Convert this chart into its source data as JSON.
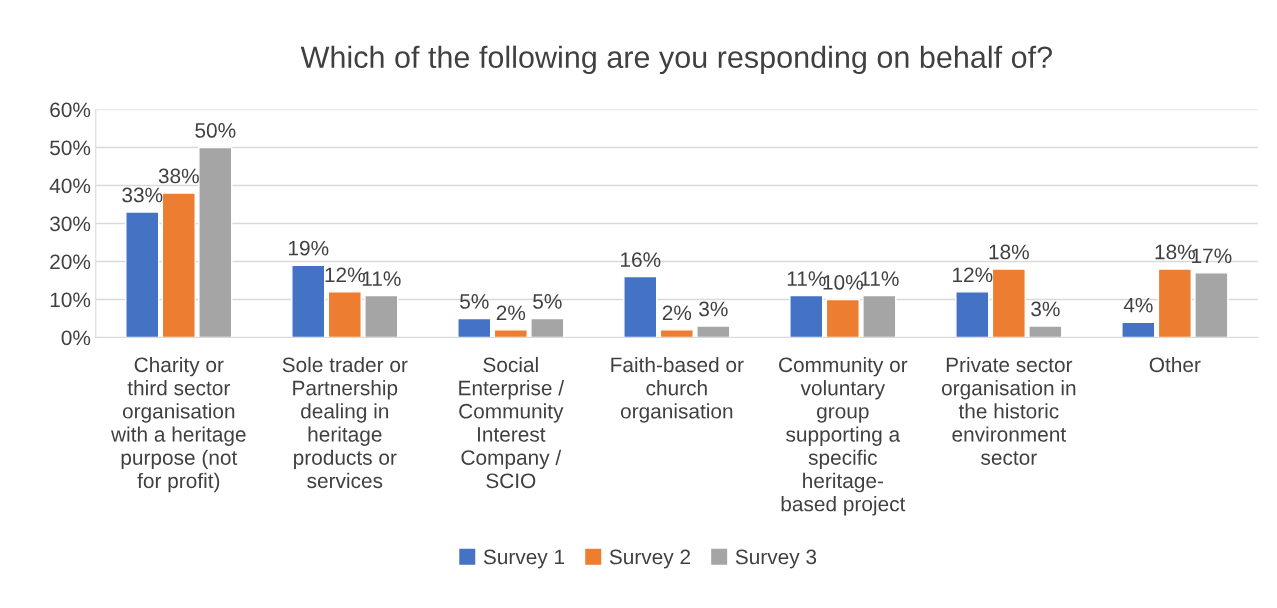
{
  "chart_data": {
    "type": "bar",
    "title": "Which of the following are you responding on behalf of?",
    "categories": [
      "Charity or\nthird sector\norganisation\nwith a heritage\npurpose (not\nfor profit)",
      "Sole trader or\nPartnership\ndealing in\nheritage\nproducts or\nservices",
      "Social\nEnterprise /\nCommunity\nInterest\nCompany /\nSCIO",
      "Faith-based or\nchurch\norganisation",
      "Community or\nvoluntary\ngroup\nsupporting a\nspecific\nheritage-\nbased project",
      "Private sector\norganisation in\nthe historic\nenvironment\nsector",
      "Other"
    ],
    "series": [
      {
        "name": "Survey 1",
        "color": "#4472c4",
        "values": [
          33,
          19,
          5,
          16,
          11,
          12,
          4
        ],
        "value_labels": [
          "33%",
          "19%",
          "5%",
          "16%",
          "11%",
          "12%",
          "4%"
        ]
      },
      {
        "name": "Survey 2",
        "color": "#ed7d31",
        "values": [
          38,
          12,
          2,
          2,
          10,
          18,
          18
        ],
        "value_labels": [
          "38%",
          "12%",
          "2%",
          "2%",
          "10%",
          "18%",
          "18%"
        ]
      },
      {
        "name": "Survey 3",
        "color": "#a5a5a5",
        "values": [
          50,
          11,
          5,
          3,
          11,
          3,
          17
        ],
        "value_labels": [
          "50%",
          "11%",
          "5%",
          "3%",
          "11%",
          "3%",
          "17%"
        ]
      }
    ],
    "ylim": [
      0,
      60
    ],
    "yticks": [
      {
        "value": 0,
        "label": "0%"
      },
      {
        "value": 10,
        "label": "10%"
      },
      {
        "value": 20,
        "label": "20%"
      },
      {
        "value": 30,
        "label": "30%"
      },
      {
        "value": 40,
        "label": "40%"
      },
      {
        "value": 50,
        "label": "50%"
      },
      {
        "value": 60,
        "label": "60%"
      }
    ],
    "grid": "y",
    "legend": "bottom"
  }
}
